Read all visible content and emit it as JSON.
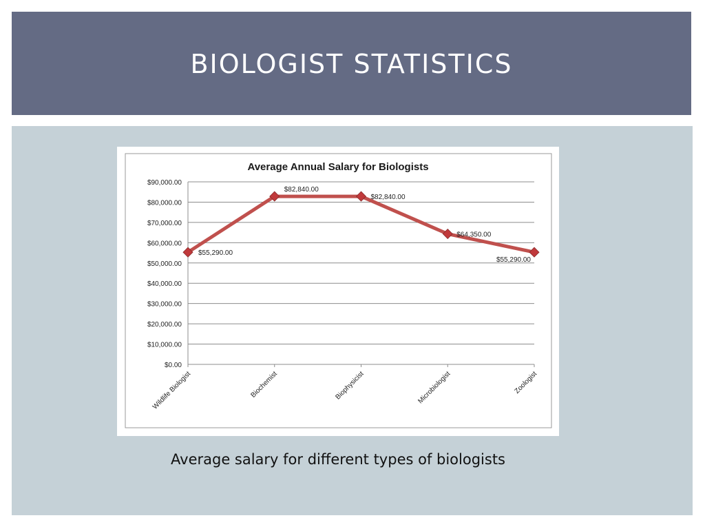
{
  "slide": {
    "title": "BIOLOGIST STATISTICS",
    "caption": "Average salary for different types of biologists"
  },
  "colors": {
    "title_bar": "#646b84",
    "panel": "#c5d1d7",
    "series_line": "#c0504d",
    "marker": "#c0393b"
  },
  "chart_data": {
    "type": "line",
    "title": "Average Annual Salary for Biologists",
    "xlabel": "",
    "ylabel": "",
    "categories": [
      "Wildlife Biologist",
      "Biochemist",
      "Biophysicist",
      "Microbiologist",
      "Zoologist"
    ],
    "series": [
      {
        "values": [
          55290,
          82840,
          82840,
          64350,
          55290
        ],
        "data_labels": [
          "$55,290.00",
          "$82,840.00",
          "$82,840.00",
          "$64,350.00",
          "$55,290.00"
        ]
      }
    ],
    "ylim": [
      0,
      90000
    ],
    "y_ticks": [
      0,
      10000,
      20000,
      30000,
      40000,
      50000,
      60000,
      70000,
      80000,
      90000
    ],
    "y_tick_labels": [
      "$0.00",
      "$10,000.00",
      "$20,000.00",
      "$30,000.00",
      "$40,000.00",
      "$50,000.00",
      "$60,000.00",
      "$70,000.00",
      "$80,000.00",
      "$90,000.00"
    ],
    "grid": true,
    "legend": "none",
    "marker": "diamond"
  }
}
